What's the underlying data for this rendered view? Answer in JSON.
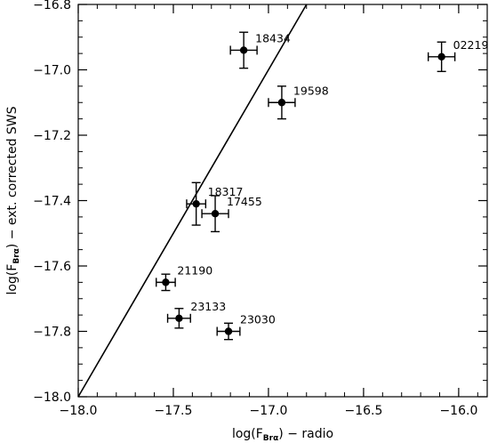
{
  "chart_data": {
    "type": "scatter",
    "xlabel": {
      "pre": "log(F",
      "sub": "Brα",
      "post": ") − radio"
    },
    "ylabel": {
      "pre": "log(F",
      "sub": "Brα",
      "post": ") − ext. corrected SWS"
    },
    "xlim": [
      -18.0,
      -15.85
    ],
    "ylim": [
      -18.0,
      -16.8
    ],
    "xticks": [
      -18.0,
      -17.5,
      -17.0,
      -16.5,
      -16.0
    ],
    "xtick_labels": [
      "−18.0",
      "−17.5",
      "−17.0",
      "−16.5",
      "−16.0"
    ],
    "xminor_step": 0.1,
    "yticks": [
      -18.0,
      -17.8,
      -17.6,
      -17.4,
      -17.2,
      -17.0,
      -16.8
    ],
    "ytick_labels": [
      "−18.0",
      "−17.8",
      "−17.6",
      "−17.4",
      "−17.2",
      "−17.0",
      "−16.8"
    ],
    "yminor_step": 0.05,
    "grid": false,
    "points": [
      {
        "label": "18434",
        "x": -17.13,
        "y": -16.94,
        "xerr": 0.07,
        "yerr": 0.055
      },
      {
        "label": "02219",
        "x": -16.09,
        "y": -16.96,
        "xerr": 0.07,
        "yerr": 0.045
      },
      {
        "label": "19598",
        "x": -16.93,
        "y": -17.1,
        "xerr": 0.07,
        "yerr": 0.05
      },
      {
        "label": "18317",
        "x": -17.38,
        "y": -17.41,
        "xerr": 0.05,
        "yerr": 0.065
      },
      {
        "label": "17455",
        "x": -17.28,
        "y": -17.44,
        "xerr": 0.07,
        "yerr": 0.055
      },
      {
        "label": "21190",
        "x": -17.54,
        "y": -17.65,
        "xerr": 0.05,
        "yerr": 0.025
      },
      {
        "label": "23133",
        "x": -17.47,
        "y": -17.76,
        "xerr": 0.06,
        "yerr": 0.03
      },
      {
        "label": "23030",
        "x": -17.21,
        "y": -17.8,
        "xerr": 0.06,
        "yerr": 0.025
      }
    ],
    "reference_line": {
      "x": [
        -18.0,
        -16.8
      ],
      "y": [
        -18.0,
        -16.8
      ]
    }
  }
}
